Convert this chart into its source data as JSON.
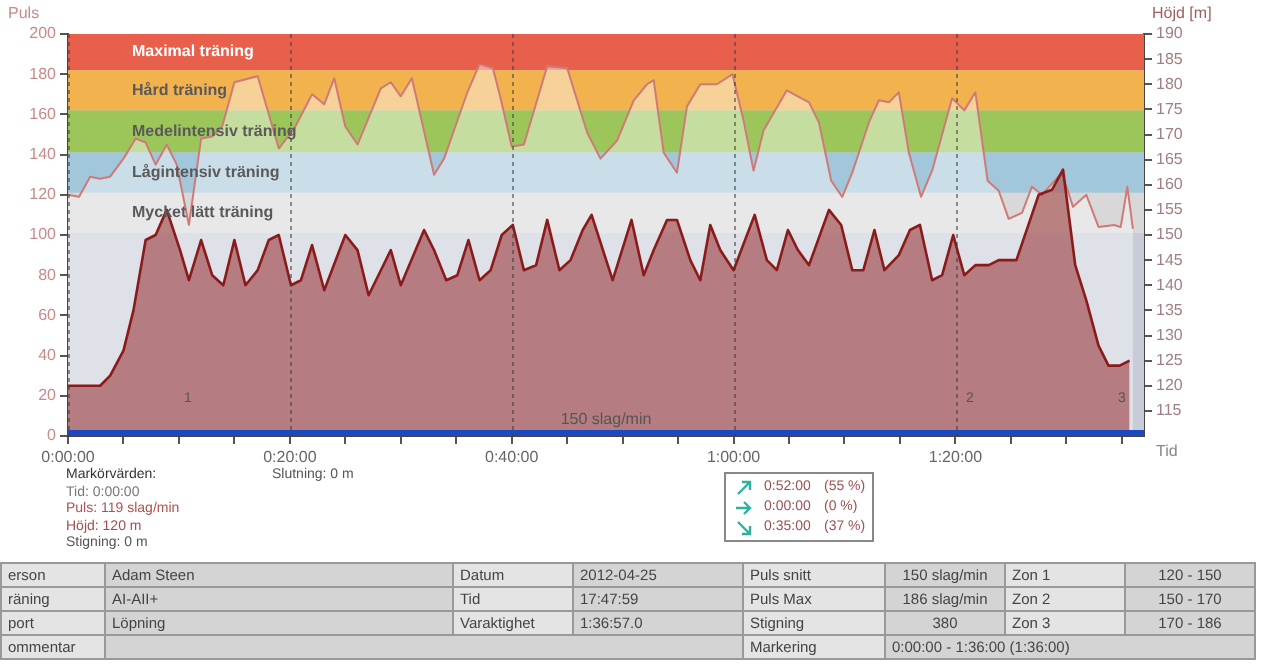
{
  "chart_data": {
    "type": "area",
    "xlabel": "Tid",
    "ylabel": "Puls",
    "y2label": "Höjd [m]",
    "xlim": [
      0,
      97
    ],
    "xticks": [
      {
        "value": 0,
        "label": "0:00:00"
      },
      {
        "value": 5,
        "label": null
      },
      {
        "value": 10,
        "label": null
      },
      {
        "value": 15,
        "label": null
      },
      {
        "value": 20,
        "label": "0:20:00"
      },
      {
        "value": 25,
        "label": null
      },
      {
        "value": 30,
        "label": null
      },
      {
        "value": 35,
        "label": null
      },
      {
        "value": 40,
        "label": "0:40:00"
      },
      {
        "value": 45,
        "label": null
      },
      {
        "value": 50,
        "label": null
      },
      {
        "value": 55,
        "label": null
      },
      {
        "value": 60,
        "label": "1:00:00"
      },
      {
        "value": 65,
        "label": null
      },
      {
        "value": 70,
        "label": null
      },
      {
        "value": 75,
        "label": null
      },
      {
        "value": 80,
        "label": "1:20:00"
      },
      {
        "value": 85,
        "label": null
      },
      {
        "value": 90,
        "label": null
      },
      {
        "value": 95,
        "label": null
      }
    ],
    "ylim": [
      0,
      200
    ],
    "yticks": [
      0,
      20,
      40,
      60,
      80,
      100,
      120,
      140,
      160,
      180,
      200
    ],
    "y2lim": [
      110,
      190
    ],
    "y2ticks": [
      115,
      120,
      125,
      130,
      135,
      140,
      145,
      150,
      155,
      160,
      165,
      170,
      175,
      180,
      185,
      190
    ],
    "grid": "x",
    "legend": false,
    "marker": "none",
    "line_style": "solid",
    "series": [
      {
        "color": "#d07a78",
        "x": [
          0,
          1,
          2,
          2.9,
          3.8,
          5,
          6.1,
          7,
          7.9,
          8.9,
          9.8,
          10.9,
          12,
          13,
          13.9,
          15,
          17.1,
          19,
          20.4,
          22,
          23.1,
          24,
          25,
          26.1,
          28.2,
          29.1,
          30,
          31,
          33,
          33.9,
          36,
          37.1,
          38.3,
          39,
          40,
          41.1,
          43.2,
          45,
          46.8,
          48,
          49.5,
          51,
          52.2,
          52.8,
          53.7,
          54.9,
          55.8,
          57,
          58.5,
          59.9,
          60.9,
          61.8,
          62.7,
          64.8,
          66.8,
          67.7,
          68.8,
          69.8,
          70.7,
          72.2,
          73.1,
          74,
          74.9,
          75.8,
          76.9,
          77.9,
          79.7,
          80.8,
          81.8,
          82.9,
          83.9,
          84.8,
          86,
          86.9,
          87.8,
          89.6,
          90.6,
          91.8,
          92.9,
          94.3,
          94.9,
          95.5,
          96
        ],
        "values": [
          120,
          119,
          129,
          128,
          129,
          138,
          148,
          146,
          135,
          145,
          135,
          105,
          148,
          149,
          154,
          176,
          179,
          143,
          153,
          170,
          165,
          178,
          154,
          145,
          173,
          176,
          169,
          178,
          130,
          138,
          171,
          185,
          183,
          168,
          144,
          145,
          184,
          183,
          151,
          138,
          147,
          167,
          175,
          177,
          141,
          131,
          164,
          175,
          175,
          180,
          157,
          132,
          152,
          172,
          166,
          156,
          127,
          119,
          131,
          156,
          167,
          166,
          171,
          141,
          119,
          132,
          168,
          162,
          171,
          127,
          122,
          108,
          111,
          124,
          120,
          131,
          114,
          120,
          104,
          105,
          104,
          124,
          103
        ]
      },
      {
        "color": "#8b1a1a",
        "axis": "y2",
        "x": [
          0,
          2.9,
          3.8,
          5,
          5.9,
          7,
          7.9,
          8.9,
          10.1,
          10.9,
          12,
          13,
          14,
          15,
          16,
          17.1,
          18.1,
          19,
          20.1,
          21,
          22,
          23.1,
          25,
          26.1,
          27.1,
          29.1,
          30,
          32.1,
          33,
          34.1,
          35.1,
          36.1,
          37.1,
          38.1,
          39.1,
          40.1,
          41.1,
          42.2,
          43.2,
          44.3,
          45.3,
          46.4,
          47.2,
          49.1,
          50.8,
          51.9,
          52.8,
          54,
          54.9,
          56.1,
          57,
          57.9,
          58.8,
          60,
          61.9,
          63,
          63.9,
          64.9,
          65.8,
          66.8,
          68.6,
          69.7,
          70.7,
          71.7,
          72.7,
          73.6,
          74.9,
          75.9,
          76.8,
          77.9,
          78.8,
          79.8,
          80.8,
          81.8,
          83,
          83.9,
          85.5,
          87.5,
          88.7,
          89.7,
          90.8,
          91.8,
          92.9,
          93.8,
          94.8,
          95.7
        ],
        "values": [
          120,
          120,
          122,
          127,
          135,
          149,
          150,
          155,
          147,
          141,
          149,
          142,
          140,
          149,
          140,
          143,
          149,
          150,
          140,
          141,
          148,
          139,
          150,
          147,
          138,
          147,
          140,
          151,
          147,
          141,
          142,
          149,
          141,
          143,
          150,
          152,
          143,
          144,
          153,
          143,
          145,
          151,
          154,
          141,
          153,
          142,
          147,
          153,
          153,
          145,
          141,
          152,
          147,
          143,
          154,
          145,
          143,
          151,
          147,
          144,
          155,
          152,
          143,
          143,
          151,
          143,
          146,
          151,
          152,
          141,
          142,
          150,
          142,
          144,
          144,
          145,
          145,
          158,
          159,
          163,
          144,
          137,
          128,
          124,
          124,
          125
        ]
      }
    ],
    "bands": [
      {
        "axis": "y",
        "from": 182,
        "to": 200,
        "label": "Maximal träning",
        "color": "#e8604c"
      },
      {
        "axis": "y",
        "from": 162,
        "to": 182,
        "label": "Hård träning",
        "color": "#f2b24e"
      },
      {
        "axis": "y",
        "from": 141,
        "to": 162,
        "label": "Medelintensiv träning",
        "color": "#9cc65a"
      },
      {
        "axis": "y",
        "from": 121,
        "to": 141,
        "label": "Lågintensiv träning",
        "color": "#a2c6da"
      },
      {
        "axis": "y",
        "from": 101,
        "to": 121,
        "label": "Mycket lätt träning",
        "color": "#d8d8d8"
      },
      {
        "axis": "y",
        "from": 0,
        "to": 3,
        "label": "150 slag/min",
        "color": "#1c48c0"
      }
    ],
    "annotations": [
      "1",
      "2",
      "3",
      "Markörvärden:",
      "Tid: 0:00:00",
      "Puls: 119 slag/min",
      "Höjd: 120 m",
      "Stigning: 0 m",
      "Slutning: 0 m",
      "0:52:00",
      "(55 %)",
      "0:00:00",
      "(0 %)",
      "0:35:00",
      "(37 %)",
      "erson",
      "Adam Steen",
      "Datum",
      "2012-04-25",
      "Puls snitt",
      "150 slag/min",
      "Zon 1",
      "120 - 150",
      "räning",
      "AI-AII+",
      "Tid",
      "17:47:59",
      "Puls Max",
      "186 slag/min",
      "Zon 2",
      "150 - 170",
      "port",
      "Löpning",
      "Varaktighet",
      "1:36:57.0",
      "Stigning",
      "380",
      "Zon 3",
      "170 - 186",
      "ommentar",
      "Markering",
      "0:00:00 - 1:36:00 (1:36:00)"
    ]
  }
}
